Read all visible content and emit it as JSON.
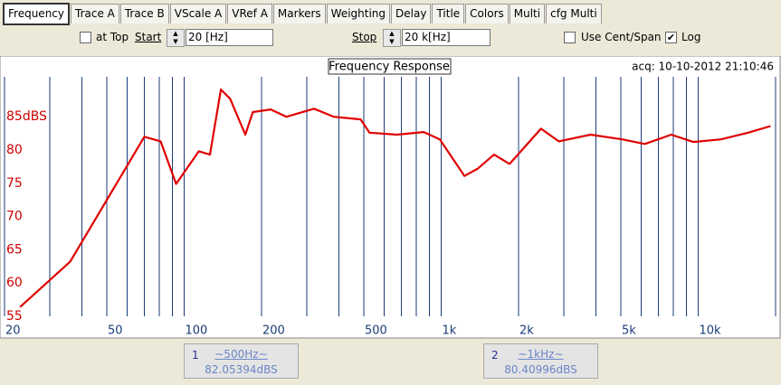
{
  "tabs": [
    "Frequency",
    "Trace A",
    "Trace B",
    "VScale A",
    "VRef A",
    "Markers",
    "Weighting",
    "Delay",
    "Title",
    "Colors",
    "Multi",
    "cfg Multi"
  ],
  "selected_tab": 0,
  "controls": {
    "at_top": {
      "label": "at Top",
      "checked": false
    },
    "start_label": "Start",
    "start_value": "20 [Hz]",
    "stop_label": "Stop",
    "stop_value": "20 k[Hz]",
    "cent_span": {
      "label": "Use Cent/Span",
      "checked": false
    },
    "log": {
      "label": "Log",
      "checked": true
    }
  },
  "chart_data": {
    "type": "line",
    "title": "Frequency Response",
    "subtitle": "acq: 10-10-2012 21:10:46",
    "log_x": true,
    "grid": "x",
    "xlim": [
      20,
      20000
    ],
    "ylim": [
      55,
      91
    ],
    "xticks": [
      20,
      50,
      100,
      200,
      500,
      {
        "value": 1000,
        "label": "1k"
      },
      {
        "value": 2000,
        "label": "2k"
      },
      {
        "value": 5000,
        "label": "5k"
      },
      {
        "value": 10000,
        "label": "10k"
      }
    ],
    "x_minor_ticks": [
      30,
      40,
      60,
      70,
      80,
      90,
      300,
      400,
      600,
      700,
      800,
      900,
      3000,
      4000,
      6000,
      7000,
      8000,
      9000,
      20000
    ],
    "yticks": [
      55,
      60,
      65,
      70,
      75,
      80,
      {
        "value": 85,
        "label": "85dBS"
      }
    ],
    "x": [
      23,
      36,
      70,
      81,
      93,
      114,
      126,
      139,
      151,
      173,
      185,
      217,
      250,
      320,
      382,
      486,
      526,
      672,
      856,
      988,
      1232,
      1388,
      1606,
      1846,
      2445,
      2870,
      3810,
      5060,
      6200,
      7860,
      9580,
      12260,
      15640,
      19120
    ],
    "series": [
      {
        "name": "Trace A",
        "color": "#e00000",
        "values": [
          56.4,
          63.2,
          82.0,
          81.3,
          74.9,
          79.8,
          79.3,
          89.1,
          87.7,
          82.3,
          85.7,
          86.1,
          85.0,
          86.2,
          85.0,
          84.6,
          82.6,
          82.3,
          82.7,
          81.6,
          76.1,
          77.2,
          79.3,
          77.9,
          83.2,
          81.3,
          82.3,
          81.6,
          80.9,
          82.3,
          81.2,
          81.6,
          82.6,
          83.6
        ]
      }
    ]
  },
  "markers": [
    {
      "index": "1",
      "freq": "~500Hz~",
      "level": "82.05394dBS"
    },
    {
      "index": "2",
      "freq": "~1kHz~",
      "level": "80.40996dBS"
    }
  ]
}
